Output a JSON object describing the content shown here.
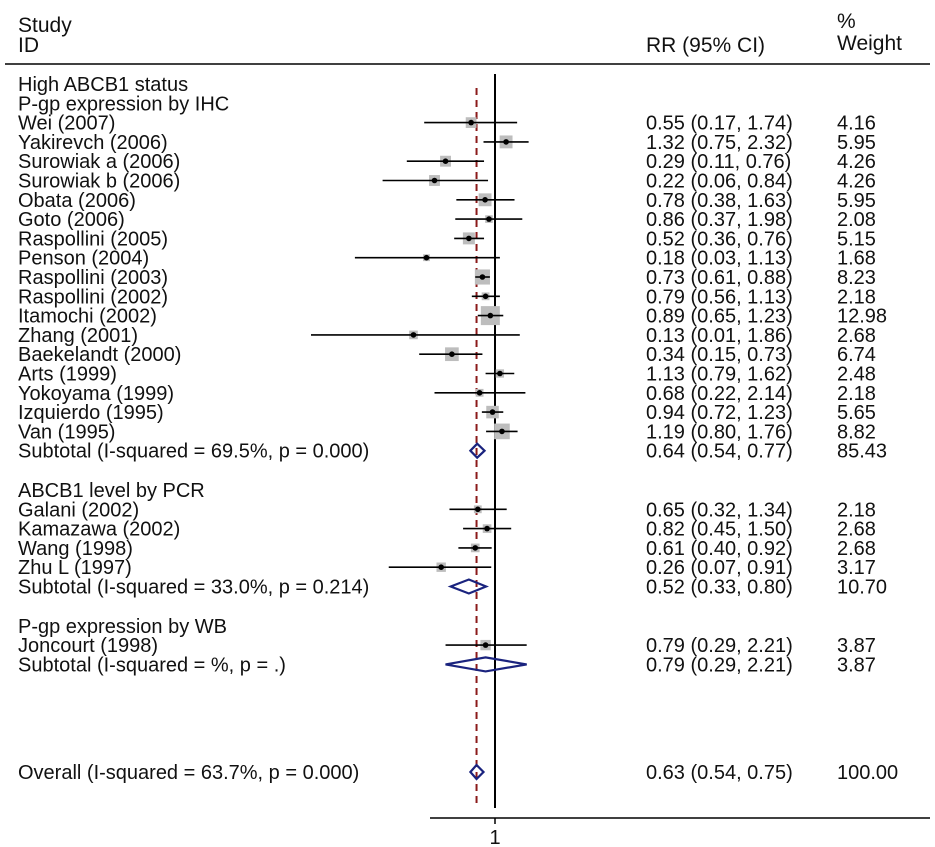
{
  "header": {
    "study_line1": "Study",
    "study_line2": "ID",
    "rr_label": "RR (95% CI)",
    "weight_line1": "%",
    "weight_line2": "Weight"
  },
  "axis": {
    "tick_label": "1"
  },
  "chart_data": {
    "type": "forest",
    "null_value": 1,
    "overall_line_value": 0.63,
    "groups": [
      {
        "title_lines": [
          "High ABCB1 status",
          "P-gp expression by IHC"
        ],
        "studies": [
          {
            "id": "Wei (2007)",
            "rr": 0.55,
            "lo": 0.17,
            "hi": 1.74,
            "ci_text": "0.55 (0.17, 1.74)",
            "weight": "4.16"
          },
          {
            "id": "Yakirevch (2006)",
            "rr": 1.32,
            "lo": 0.75,
            "hi": 2.32,
            "ci_text": "1.32 (0.75, 2.32)",
            "weight": "5.95"
          },
          {
            "id": "Surowiak a (2006)",
            "rr": 0.29,
            "lo": 0.11,
            "hi": 0.76,
            "ci_text": "0.29 (0.11, 0.76)",
            "weight": "4.26"
          },
          {
            "id": "Surowiak b (2006)",
            "rr": 0.22,
            "lo": 0.06,
            "hi": 0.84,
            "ci_text": "0.22 (0.06, 0.84)",
            "weight": "4.26"
          },
          {
            "id": "Obata (2006)",
            "rr": 0.78,
            "lo": 0.38,
            "hi": 1.63,
            "ci_text": "0.78 (0.38, 1.63)",
            "weight": "5.95"
          },
          {
            "id": "Goto (2006)",
            "rr": 0.86,
            "lo": 0.37,
            "hi": 1.98,
            "ci_text": "0.86 (0.37, 1.98)",
            "weight": "2.08"
          },
          {
            "id": "Raspollini (2005)",
            "rr": 0.52,
            "lo": 0.36,
            "hi": 0.76,
            "ci_text": "0.52 (0.36, 0.76)",
            "weight": "5.15"
          },
          {
            "id": "Penson (2004)",
            "rr": 0.18,
            "lo": 0.03,
            "hi": 1.13,
            "ci_text": "0.18 (0.03, 1.13)",
            "weight": "1.68"
          },
          {
            "id": "Raspollini (2003)",
            "rr": 0.73,
            "lo": 0.61,
            "hi": 0.88,
            "ci_text": "0.73 (0.61, 0.88)",
            "weight": "8.23"
          },
          {
            "id": "Raspollini (2002)",
            "rr": 0.79,
            "lo": 0.56,
            "hi": 1.13,
            "ci_text": "0.79 (0.56, 1.13)",
            "weight": "2.18"
          },
          {
            "id": "Itamochi (2002)",
            "rr": 0.89,
            "lo": 0.65,
            "hi": 1.23,
            "ci_text": "0.89 (0.65, 1.23)",
            "weight": "12.98"
          },
          {
            "id": "Zhang (2001)",
            "rr": 0.13,
            "lo": 0.01,
            "hi": 1.86,
            "ci_text": "0.13 (0.01, 1.86)",
            "weight": "2.68"
          },
          {
            "id": "Baekelandt (2000)",
            "rr": 0.34,
            "lo": 0.15,
            "hi": 0.73,
            "ci_text": "0.34 (0.15, 0.73)",
            "weight": "6.74"
          },
          {
            "id": "Arts (1999)",
            "rr": 1.13,
            "lo": 0.79,
            "hi": 1.62,
            "ci_text": "1.13 (0.79, 1.62)",
            "weight": "2.48"
          },
          {
            "id": "Yokoyama (1999)",
            "rr": 0.68,
            "lo": 0.22,
            "hi": 2.14,
            "ci_text": "0.68 (0.22, 2.14)",
            "weight": "2.18"
          },
          {
            "id": "Izquierdo (1995)",
            "rr": 0.94,
            "lo": 0.72,
            "hi": 1.23,
            "ci_text": "0.94 (0.72, 1.23)",
            "weight": "5.65"
          },
          {
            "id": "Van (1995)",
            "rr": 1.19,
            "lo": 0.8,
            "hi": 1.76,
            "ci_text": "1.19 (0.80, 1.76)",
            "weight": "8.82"
          }
        ],
        "subtotal": {
          "label": "Subtotal (I-squared = 69.5%, p = 0.000)",
          "rr": 0.64,
          "lo": 0.54,
          "hi": 0.77,
          "ci_text": "0.64 (0.54, 0.77)",
          "weight": "85.43"
        }
      },
      {
        "title_lines": [
          "ABCB1 level by PCR"
        ],
        "studies": [
          {
            "id": "Galani (2002)",
            "rr": 0.65,
            "lo": 0.32,
            "hi": 1.34,
            "ci_text": "0.65 (0.32, 1.34)",
            "weight": "2.18"
          },
          {
            "id": "Kamazawa (2002)",
            "rr": 0.82,
            "lo": 0.45,
            "hi": 1.5,
            "ci_text": "0.82 (0.45, 1.50)",
            "weight": "2.68"
          },
          {
            "id": "Wang (1998)",
            "rr": 0.61,
            "lo": 0.4,
            "hi": 0.92,
            "ci_text": "0.61 (0.40, 0.92)",
            "weight": "2.68"
          },
          {
            "id": "Zhu L (1997)",
            "rr": 0.26,
            "lo": 0.07,
            "hi": 0.91,
            "ci_text": "0.26 (0.07, 0.91)",
            "weight": "3.17"
          }
        ],
        "subtotal": {
          "label": "Subtotal (I-squared = 33.0%, p = 0.214)",
          "rr": 0.52,
          "lo": 0.33,
          "hi": 0.8,
          "ci_text": "0.52 (0.33, 0.80)",
          "weight": "10.70"
        }
      },
      {
        "title_lines": [
          "P-gp expression by WB"
        ],
        "studies": [
          {
            "id": "Joncourt (1998)",
            "rr": 0.79,
            "lo": 0.29,
            "hi": 2.21,
            "ci_text": "0.79 (0.29, 2.21)",
            "weight": "3.87"
          }
        ],
        "subtotal": {
          "label": "Subtotal (I-squared = %, p =  .)",
          "rr": 0.79,
          "lo": 0.29,
          "hi": 2.21,
          "ci_text": "0.79 (0.29, 2.21)",
          "weight": "3.87"
        }
      }
    ],
    "overall": {
      "label": "Overall (I-squared = 63.7%, p = 0.000)",
      "rr": 0.63,
      "lo": 0.54,
      "hi": 0.75,
      "ci_text": "0.63 (0.54, 0.75)",
      "weight": "100.00"
    },
    "colors": {
      "diamond": "#1a237e",
      "overall_line": "#8b1a1a",
      "box": "#bdbdbd",
      "line": "#000000"
    }
  }
}
